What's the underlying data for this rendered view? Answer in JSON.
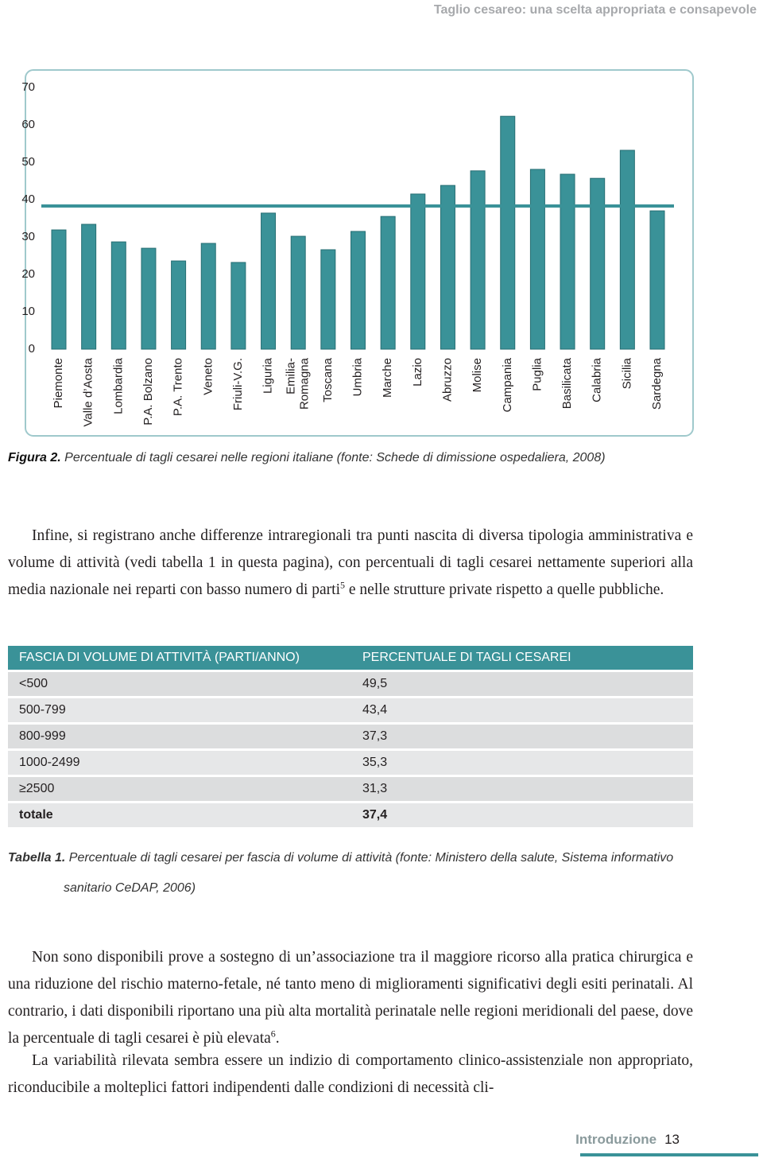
{
  "header": {
    "title": "Taglio cesareo: una scelta appropriata e consapevole"
  },
  "chart_data": {
    "type": "bar",
    "categories": [
      "Piemonte",
      "Valle d’Aosta",
      "Lombardia",
      "P.A. Bolzano",
      "P.A. Trento",
      "Veneto",
      "Friuli-V.G.",
      "Liguria",
      "Emilia-\nRomagna",
      "Toscana",
      "Umbria",
      "Marche",
      "Lazio",
      "Abruzzo",
      "Molise",
      "Campania",
      "Puglia",
      "Basilicata",
      "Calabria",
      "Sicilia",
      "Sardegna"
    ],
    "values": [
      31.9,
      33.4,
      28.7,
      27.0,
      23.6,
      28.3,
      23.2,
      36.4,
      30.2,
      26.6,
      31.5,
      35.5,
      41.5,
      43.8,
      47.7,
      62.3,
      48.1,
      46.8,
      45.7,
      53.2,
      37.0
    ],
    "color": "#3a9298",
    "average_line": 38.3,
    "ylim": [
      0,
      70
    ],
    "yticks": [
      0,
      10,
      20,
      30,
      40,
      50,
      60,
      70
    ]
  },
  "figure_caption": {
    "label": "Figura 2.",
    "text": "Percentuale di tagli cesarei nelle regioni italiane (fonte: Schede di dimissione ospedaliera, 2008)"
  },
  "paragraphs": [
    {
      "text": "Infine, si registrano anche differenze intraregionali tra punti nascita di diversa tipologia amministrativa e volume di attività (vedi tabella 1 in questa pagina), con percentuali di tagli cesarei nettamente superiori alla media nazionale nei reparti con basso numero di parti",
      "note": "5",
      "text_after": " e nelle strutture private rispetto a quelle pubbliche."
    },
    {
      "text": "Non sono disponibili prove a sostegno di un’associazione tra il maggiore ricorso alla pratica chirurgica e una riduzione del rischio materno-fetale, né tanto meno di miglioramenti significativi degli esiti perinatali. Al contrario, i dati disponibili riportano una più alta mortalità perinatale nelle regioni meridionali del paese, dove la percentuale di tagli cesarei è più elevata",
      "note": "6",
      "text_after": "."
    },
    {
      "text": "La variabilità rilevata sembra essere un indizio di comportamento clinico-assistenziale non appropriato, riconducibile a molteplici fattori indipendenti dalle condizioni di necessità cli-"
    }
  ],
  "table": {
    "header": [
      "FASCIA DI VOLUME DI ATTIVITÀ (PARTI/ANNO)",
      "PERCENTUALE DI TAGLI CESAREI"
    ],
    "rows": [
      [
        "<500",
        "49,5"
      ],
      [
        "500-799",
        "43,4"
      ],
      [
        "800-999",
        "37,3"
      ],
      [
        "1000-2499",
        "35,3"
      ],
      [
        "≥2500",
        "31,3"
      ],
      [
        "totale",
        "37,4"
      ]
    ],
    "caption": {
      "label": "Tabella 1.",
      "text": "Percentuale di tagli cesarei per fascia di volume di attività (fonte: Ministero della salute, Sistema informativo sanitario CeDAP, 2006)"
    }
  },
  "footer": {
    "section": "Introduzione",
    "page": "13"
  }
}
